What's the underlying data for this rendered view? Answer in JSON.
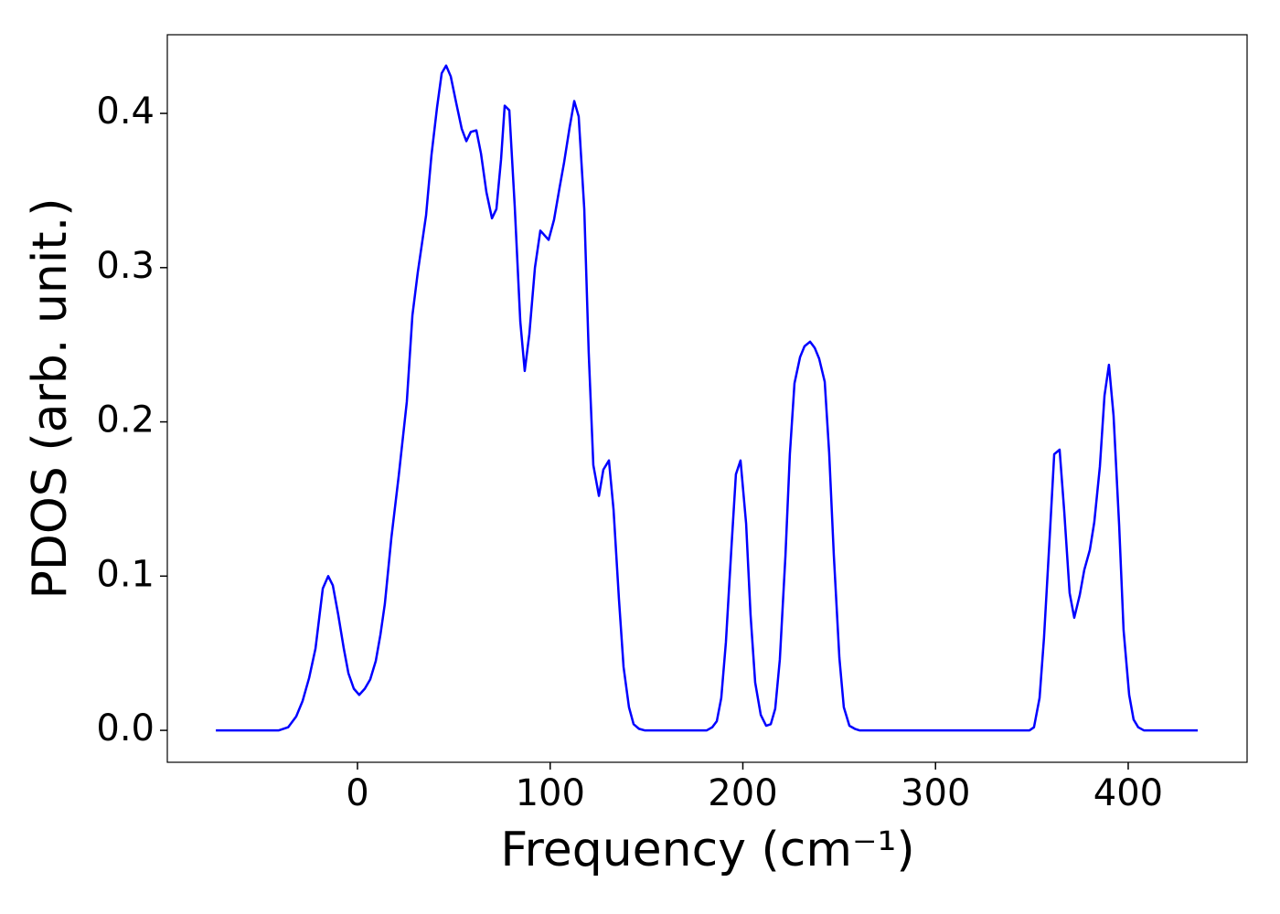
{
  "chart_data": {
    "type": "line",
    "xlabel": "Frequency (cm⁻¹)",
    "ylabel": "PDOS (arb. unit.)",
    "xlim": [
      -98.7,
      461.7
    ],
    "ylim": [
      -0.0207,
      0.451
    ],
    "xticks": [
      0,
      100,
      200,
      300,
      400
    ],
    "yticks": [
      {
        "value": 0,
        "label": "0.0"
      },
      0.1,
      0.2,
      0.3,
      0.4
    ],
    "grid": false,
    "series": [
      {
        "color": "#0000ff",
        "x": [
          -73.5,
          -40.8,
          -36,
          -31.8,
          -28.5,
          -25.1,
          -21.8,
          -18,
          -15.2,
          -12.8,
          -10,
          -7.1,
          -4.7,
          -1.9,
          0.9,
          3.8,
          6.6,
          9.5,
          11.9,
          14.2,
          17.6,
          21.4,
          25.6,
          28.5,
          31.3,
          35.6,
          38.4,
          41.3,
          43.7,
          46,
          48.4,
          51.2,
          54.1,
          56.5,
          58.8,
          61.7,
          64.1,
          66.9,
          69.8,
          72.1,
          74.5,
          76.4,
          78.8,
          81.6,
          84.5,
          86.8,
          89.2,
          92.1,
          94.9,
          99.2,
          102,
          104.9,
          107.2,
          110.1,
          112.5,
          114.8,
          117.7,
          120,
          122.4,
          125.3,
          127.6,
          130.5,
          132.9,
          135.7,
          138.1,
          140.9,
          143.3,
          146.1,
          149,
          181.3,
          184.1,
          186.5,
          188.8,
          191.2,
          194.1,
          196.4,
          198.8,
          201.7,
          204,
          206.4,
          209.3,
          212.1,
          214.5,
          216.8,
          219.2,
          222.1,
          224.4,
          226.8,
          229.7,
          232,
          234.9,
          237.3,
          239.6,
          242.5,
          244.8,
          247.2,
          250.1,
          252.4,
          255.3,
          258.1,
          260.5,
          348.8,
          351.1,
          354,
          356.3,
          359.2,
          361.6,
          364.4,
          366.8,
          369.6,
          372,
          374.9,
          377.2,
          380.1,
          382.4,
          385.3,
          387.7,
          390,
          392.4,
          395.3,
          397.6,
          400.5,
          402.8,
          405.2,
          408.1,
          436.1
        ],
        "values": [
          0,
          0,
          0.002,
          0.009,
          0.019,
          0.034,
          0.053,
          0.092,
          0.1,
          0.094,
          0.075,
          0.053,
          0.037,
          0.027,
          0.023,
          0.027,
          0.033,
          0.045,
          0.062,
          0.082,
          0.125,
          0.165,
          0.213,
          0.269,
          0.297,
          0.334,
          0.373,
          0.404,
          0.426,
          0.431,
          0.424,
          0.407,
          0.39,
          0.382,
          0.388,
          0.389,
          0.374,
          0.349,
          0.332,
          0.338,
          0.37,
          0.405,
          0.402,
          0.34,
          0.265,
          0.233,
          0.257,
          0.3,
          0.324,
          0.318,
          0.331,
          0.352,
          0.368,
          0.391,
          0.408,
          0.398,
          0.338,
          0.245,
          0.172,
          0.152,
          0.169,
          0.175,
          0.143,
          0.085,
          0.041,
          0.015,
          0.004,
          0.001,
          0,
          0,
          0.002,
          0.006,
          0.021,
          0.057,
          0.119,
          0.166,
          0.175,
          0.134,
          0.075,
          0.031,
          0.01,
          0.003,
          0.004,
          0.014,
          0.046,
          0.113,
          0.179,
          0.225,
          0.242,
          0.249,
          0.252,
          0.248,
          0.241,
          0.226,
          0.18,
          0.114,
          0.047,
          0.015,
          0.003,
          0.001,
          0,
          0,
          0.002,
          0.021,
          0.06,
          0.124,
          0.179,
          0.182,
          0.142,
          0.089,
          0.073,
          0.088,
          0.104,
          0.117,
          0.135,
          0.171,
          0.217,
          0.237,
          0.204,
          0.133,
          0.065,
          0.023,
          0.007,
          0.002,
          0,
          0
        ]
      }
    ]
  }
}
